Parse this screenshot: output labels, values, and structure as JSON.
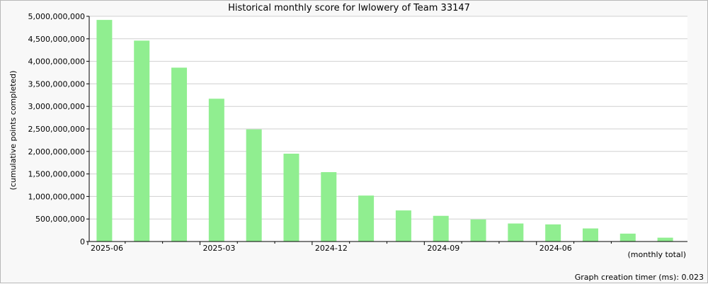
{
  "chart_data": {
    "type": "bar",
    "title": "Historical monthly score for lwlowery of Team 33147",
    "ylabel": "(cumulative points completed)",
    "xlabel": "(monthly total)",
    "ylim": [
      0,
      5000000000
    ],
    "yticks": [
      0,
      500000000,
      1000000000,
      1500000000,
      2000000000,
      2500000000,
      3000000000,
      3500000000,
      4000000000,
      4500000000,
      5000000000
    ],
    "ytick_labels": [
      "0",
      "500,000,000",
      "1,000,000,000",
      "1,500,000,000",
      "2,000,000,000",
      "2,500,000,000",
      "3,000,000,000",
      "3,500,000,000",
      "4,000,000,000",
      "4,500,000,000",
      "5,000,000,000"
    ],
    "categories": [
      "2025-06",
      "2025-05",
      "2025-04",
      "2025-03",
      "2025-02",
      "2025-01",
      "2024-12",
      "2024-11",
      "2024-10",
      "2024-09",
      "2024-08",
      "2024-07",
      "2024-06",
      "2024-05",
      "2024-04",
      "2024-03"
    ],
    "x_tick_labels": [
      "2025-06",
      "2025-03",
      "2024-12",
      "2024-09",
      "2024-06"
    ],
    "values": [
      4920000000,
      4460000000,
      3860000000,
      3170000000,
      2490000000,
      1950000000,
      1540000000,
      1020000000,
      690000000,
      570000000,
      490000000,
      400000000,
      380000000,
      290000000,
      175000000,
      85000000
    ],
    "bar_color": "#90ee90",
    "grid": true
  },
  "footer": {
    "timer_text": "Graph creation timer (ms): 0.023"
  }
}
